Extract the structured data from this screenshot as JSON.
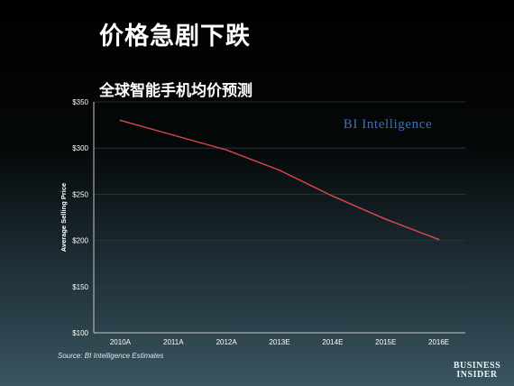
{
  "slide": {
    "title": "价格急剧下跌",
    "chart_title": "全球智能手机均价预测",
    "source": "Source: BI Intelligence Estimates",
    "watermark": "BI Intelligence",
    "brand_line1": "BUSINESS",
    "brand_line2": "INSIDER"
  },
  "colors": {
    "line": "#e0484a",
    "axis": "#c8c8c8",
    "grid": "#2f3a40",
    "watermark": "#3d6fb6"
  },
  "chart_data": {
    "type": "line",
    "title": "全球智能手机均价预测",
    "xlabel": "",
    "ylabel": "Average Selling Price",
    "categories": [
      "2010A",
      "2011A",
      "2012A",
      "2013E",
      "2014E",
      "2015E",
      "2016E"
    ],
    "series": [
      {
        "values": [
          330,
          314,
          298,
          276,
          248,
          223,
          201
        ]
      }
    ],
    "ylim": [
      100,
      350
    ],
    "yticks": [
      100,
      150,
      200,
      250,
      300,
      350
    ],
    "ytick_labels": [
      "$100",
      "$150",
      "$200",
      "$250",
      "$300",
      "$350"
    ],
    "grid": true,
    "legend": "none"
  }
}
